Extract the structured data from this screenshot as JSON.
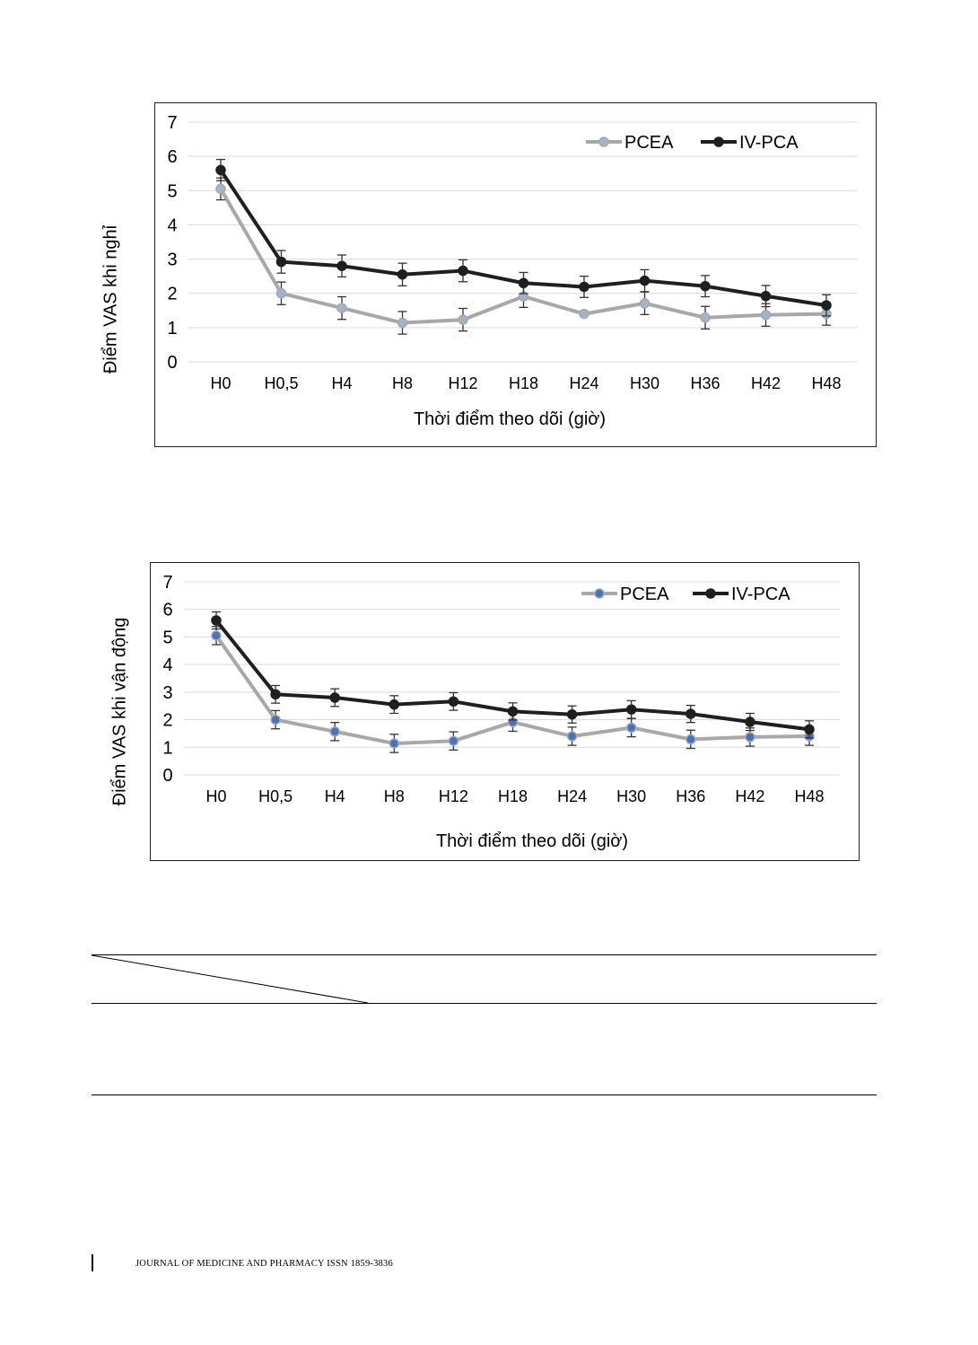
{
  "chart_data": [
    {
      "type": "line",
      "title": "",
      "xlabel": "Thời điểm theo dõi (giờ)",
      "ylabel": "Điểm VAS khi nghỉ",
      "ylim": [
        0,
        7
      ],
      "yticks": [
        "0",
        "1",
        "2",
        "3",
        "4",
        "5",
        "6",
        "7"
      ],
      "grid": true,
      "legend": "top-right",
      "categories": [
        "H0",
        "H0,5",
        "H4",
        "H8",
        "H12",
        "H18",
        "H24",
        "H30",
        "H36",
        "H42",
        "H48"
      ],
      "series": [
        {
          "name": "PCEA",
          "color": "#a8a8a8",
          "marker_color": "#9fb4cf",
          "values": [
            5.05,
            2.0,
            1.57,
            1.14,
            1.23,
            1.91,
            1.4,
            1.71,
            1.29,
            1.37,
            1.4
          ],
          "error": [
            0.32,
            0.33,
            0.33,
            0.33,
            0.33,
            0.32,
            0.0,
            0.33,
            0.33,
            0.33,
            0.33
          ]
        },
        {
          "name": "IV-PCA",
          "color": "#1f1f1f",
          "marker_color": "#1f1f1f",
          "values": [
            5.6,
            2.92,
            2.8,
            2.55,
            2.66,
            2.3,
            2.19,
            2.37,
            2.21,
            1.92,
            1.65
          ],
          "error": [
            0.31,
            0.33,
            0.32,
            0.33,
            0.32,
            0.31,
            0.31,
            0.32,
            0.31,
            0.31,
            0.31
          ]
        }
      ]
    },
    {
      "type": "line",
      "title": "",
      "xlabel": "Thời điểm theo dõi (giờ)",
      "ylabel": "Điểm VAS khi vận động",
      "ylim": [
        0,
        7
      ],
      "yticks": [
        "0",
        "1",
        "2",
        "3",
        "4",
        "5",
        "6",
        "7"
      ],
      "grid": true,
      "legend": "top-right",
      "categories": [
        "H0",
        "H0,5",
        "H4",
        "H8",
        "H12",
        "H18",
        "H24",
        "H30",
        "H36",
        "H42",
        "H48"
      ],
      "series": [
        {
          "name": "PCEA",
          "color": "#a8a8a8",
          "marker_color": "#3f74c9",
          "values": [
            5.05,
            2.0,
            1.57,
            1.14,
            1.23,
            1.91,
            1.4,
            1.71,
            1.29,
            1.37,
            1.4
          ],
          "error": [
            0.33,
            0.33,
            0.33,
            0.33,
            0.33,
            0.33,
            0.33,
            0.33,
            0.33,
            0.33,
            0.33
          ]
        },
        {
          "name": "IV-PCA",
          "color": "#1f1f1f",
          "marker_color": "#1f1f1f",
          "values": [
            5.6,
            2.92,
            2.8,
            2.55,
            2.66,
            2.3,
            2.19,
            2.37,
            2.21,
            1.92,
            1.65
          ],
          "error": [
            0.31,
            0.32,
            0.32,
            0.32,
            0.32,
            0.31,
            0.31,
            0.32,
            0.31,
            0.31,
            0.31
          ]
        }
      ]
    }
  ],
  "footer": {
    "journal": "JOURNAL OF MEDICINE AND PHARMACY ISSN 1859-3836"
  }
}
